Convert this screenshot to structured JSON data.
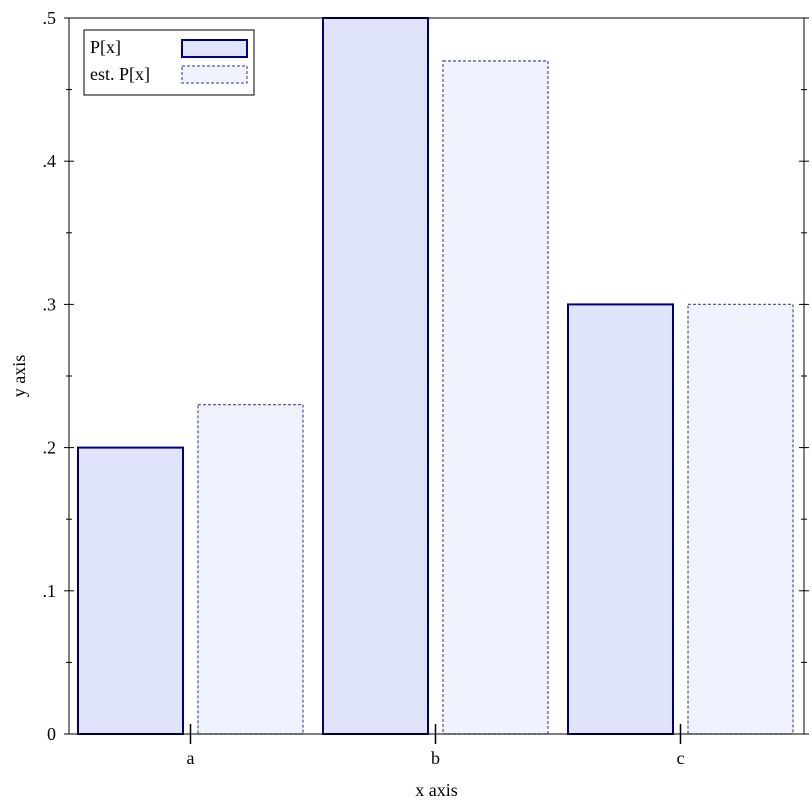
{
  "chart_data": {
    "type": "bar",
    "categories": [
      "a",
      "b",
      "c"
    ],
    "series": [
      {
        "name": "P[x]",
        "values": [
          0.2,
          0.5,
          0.3
        ],
        "fill": "#e0e4fa",
        "stroke": "#00007f",
        "dash": "solid"
      },
      {
        "name": "est. P[x]",
        "values": [
          0.23,
          0.47,
          0.3
        ],
        "fill": "#f0f2fd",
        "stroke": "#5a5ab4",
        "dash": "dashed"
      }
    ],
    "xlabel": "x axis",
    "ylabel": "y axis",
    "ylim": [
      0,
      0.5
    ],
    "yticks": [
      {
        "value": 0,
        "label": "0"
      },
      {
        "value": 0.1,
        "label": ".1"
      },
      {
        "value": 0.2,
        "label": ".2"
      },
      {
        "value": 0.3,
        "label": ".3"
      },
      {
        "value": 0.4,
        "label": ".4"
      },
      {
        "value": 0.5,
        "label": ".5"
      }
    ],
    "y_minor_ticks": [
      0.05,
      0.15,
      0.25,
      0.35,
      0.45
    ],
    "legend": "top-left",
    "grid": false
  }
}
